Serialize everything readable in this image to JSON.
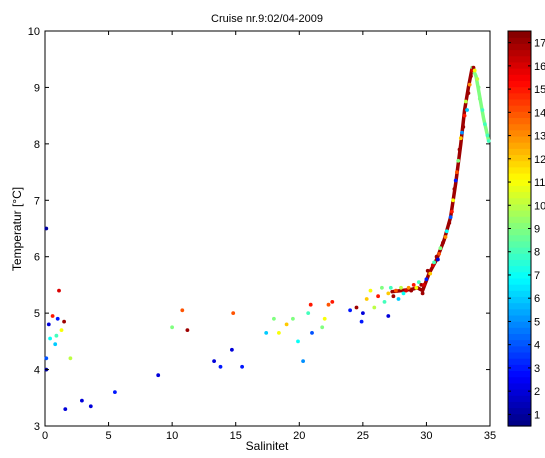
{
  "chart_data": {
    "type": "scatter",
    "title": "Cruise nr.9:02/04-2009",
    "xlabel": "Salinitet",
    "ylabel": "Temperatur [°C]",
    "xlim": [
      0,
      35
    ],
    "ylim": [
      3,
      10
    ],
    "xticks": [
      "0",
      "5",
      "10",
      "15",
      "20",
      "25",
      "30",
      "35"
    ],
    "yticks": [
      "3",
      "4",
      "5",
      "6",
      "7",
      "8",
      "9",
      "10"
    ],
    "grid": false,
    "legend": "none",
    "colorbar": {
      "placement": "right",
      "colormap": "jet",
      "range": [
        0.5,
        17.5
      ],
      "ticks": [
        "1",
        "2",
        "3",
        "4",
        "5",
        "6",
        "7",
        "8",
        "9",
        "10",
        "11",
        "12",
        "13",
        "14",
        "15",
        "16",
        "17"
      ]
    },
    "points": [
      {
        "x": 0.1,
        "y": 6.5,
        "c": 1
      },
      {
        "x": 0.1,
        "y": 4.0,
        "c": 1
      },
      {
        "x": 0.1,
        "y": 4.2,
        "c": 4
      },
      {
        "x": 0.3,
        "y": 4.8,
        "c": 2
      },
      {
        "x": 0.4,
        "y": 4.55,
        "c": 7
      },
      {
        "x": 0.6,
        "y": 4.95,
        "c": 15
      },
      {
        "x": 0.8,
        "y": 4.45,
        "c": 6
      },
      {
        "x": 0.9,
        "y": 4.6,
        "c": 8
      },
      {
        "x": 1.0,
        "y": 4.9,
        "c": 3
      },
      {
        "x": 1.1,
        "y": 5.4,
        "c": 16
      },
      {
        "x": 1.3,
        "y": 4.7,
        "c": 11
      },
      {
        "x": 1.5,
        "y": 4.85,
        "c": 17
      },
      {
        "x": 1.6,
        "y": 3.3,
        "c": 2
      },
      {
        "x": 2.0,
        "y": 4.2,
        "c": 10
      },
      {
        "x": 2.9,
        "y": 3.45,
        "c": 2
      },
      {
        "x": 3.6,
        "y": 3.35,
        "c": 2
      },
      {
        "x": 5.5,
        "y": 3.6,
        "c": 3
      },
      {
        "x": 8.9,
        "y": 3.9,
        "c": 2
      },
      {
        "x": 10.0,
        "y": 4.75,
        "c": 9
      },
      {
        "x": 10.8,
        "y": 5.05,
        "c": 14
      },
      {
        "x": 11.2,
        "y": 4.7,
        "c": 17
      },
      {
        "x": 13.3,
        "y": 4.15,
        "c": 2
      },
      {
        "x": 13.8,
        "y": 4.05,
        "c": 3
      },
      {
        "x": 14.7,
        "y": 4.35,
        "c": 2
      },
      {
        "x": 14.8,
        "y": 5.0,
        "c": 14
      },
      {
        "x": 15.5,
        "y": 4.05,
        "c": 3
      },
      {
        "x": 17.4,
        "y": 4.65,
        "c": 6
      },
      {
        "x": 18.0,
        "y": 4.9,
        "c": 9
      },
      {
        "x": 18.4,
        "y": 4.65,
        "c": 11
      },
      {
        "x": 19.0,
        "y": 4.8,
        "c": 12
      },
      {
        "x": 19.5,
        "y": 4.9,
        "c": 9
      },
      {
        "x": 19.9,
        "y": 4.5,
        "c": 7
      },
      {
        "x": 20.3,
        "y": 4.15,
        "c": 5
      },
      {
        "x": 20.7,
        "y": 5.0,
        "c": 8
      },
      {
        "x": 20.9,
        "y": 5.15,
        "c": 15
      },
      {
        "x": 21.0,
        "y": 4.65,
        "c": 4
      },
      {
        "x": 21.8,
        "y": 4.75,
        "c": 9
      },
      {
        "x": 22.0,
        "y": 4.9,
        "c": 11
      },
      {
        "x": 22.3,
        "y": 5.15,
        "c": 14
      },
      {
        "x": 22.6,
        "y": 5.2,
        "c": 15
      },
      {
        "x": 24.0,
        "y": 5.05,
        "c": 3
      },
      {
        "x": 24.5,
        "y": 5.1,
        "c": 17
      },
      {
        "x": 24.9,
        "y": 4.85,
        "c": 3
      },
      {
        "x": 25.0,
        "y": 5.0,
        "c": 2
      },
      {
        "x": 25.3,
        "y": 5.25,
        "c": 12
      },
      {
        "x": 25.6,
        "y": 5.4,
        "c": 11
      },
      {
        "x": 25.9,
        "y": 5.1,
        "c": 10
      },
      {
        "x": 26.2,
        "y": 5.3,
        "c": 15
      },
      {
        "x": 26.5,
        "y": 5.45,
        "c": 9
      },
      {
        "x": 26.7,
        "y": 5.2,
        "c": 8
      },
      {
        "x": 27.0,
        "y": 5.35,
        "c": 12
      },
      {
        "x": 27.0,
        "y": 4.95,
        "c": 2
      },
      {
        "x": 27.2,
        "y": 5.45,
        "c": 8
      },
      {
        "x": 27.4,
        "y": 5.3,
        "c": 17
      },
      {
        "x": 27.6,
        "y": 5.4,
        "c": 14
      },
      {
        "x": 27.8,
        "y": 5.25,
        "c": 6
      },
      {
        "x": 28.0,
        "y": 5.45,
        "c": 10
      },
      {
        "x": 28.2,
        "y": 5.35,
        "c": 7
      },
      {
        "x": 28.4,
        "y": 5.4,
        "c": 16
      },
      {
        "x": 28.6,
        "y": 5.45,
        "c": 13
      },
      {
        "x": 28.8,
        "y": 5.4,
        "c": 17
      },
      {
        "x": 29.0,
        "y": 5.5,
        "c": 15
      },
      {
        "x": 29.2,
        "y": 5.45,
        "c": 11
      },
      {
        "x": 29.4,
        "y": 5.55,
        "c": 8
      },
      {
        "x": 29.6,
        "y": 5.5,
        "c": 17
      },
      {
        "x": 29.7,
        "y": 5.35,
        "c": 17
      },
      {
        "x": 29.8,
        "y": 5.5,
        "c": 16
      },
      {
        "x": 30.0,
        "y": 5.6,
        "c": 3
      },
      {
        "x": 30.1,
        "y": 5.75,
        "c": 17
      },
      {
        "x": 30.3,
        "y": 5.7,
        "c": 12
      },
      {
        "x": 30.5,
        "y": 5.85,
        "c": 16
      },
      {
        "x": 30.6,
        "y": 5.9,
        "c": 8
      },
      {
        "x": 30.8,
        "y": 6.0,
        "c": 17
      },
      {
        "x": 31.0,
        "y": 6.05,
        "c": 14
      },
      {
        "x": 31.1,
        "y": 6.15,
        "c": 9
      },
      {
        "x": 31.3,
        "y": 6.25,
        "c": 17
      },
      {
        "x": 31.5,
        "y": 6.35,
        "c": 13
      },
      {
        "x": 31.6,
        "y": 6.45,
        "c": 7
      },
      {
        "x": 31.8,
        "y": 6.6,
        "c": 17
      },
      {
        "x": 32.0,
        "y": 6.8,
        "c": 15
      },
      {
        "x": 32.1,
        "y": 7.0,
        "c": 11
      },
      {
        "x": 32.2,
        "y": 7.2,
        "c": 17
      },
      {
        "x": 32.4,
        "y": 7.5,
        "c": 14
      },
      {
        "x": 32.5,
        "y": 7.7,
        "c": 9
      },
      {
        "x": 32.6,
        "y": 7.9,
        "c": 17
      },
      {
        "x": 32.7,
        "y": 8.1,
        "c": 12
      },
      {
        "x": 32.9,
        "y": 8.3,
        "c": 17
      },
      {
        "x": 33.0,
        "y": 8.5,
        "c": 15
      },
      {
        "x": 33.1,
        "y": 8.75,
        "c": 10
      },
      {
        "x": 33.3,
        "y": 8.9,
        "c": 17
      },
      {
        "x": 33.4,
        "y": 9.05,
        "c": 13
      },
      {
        "x": 33.5,
        "y": 9.2,
        "c": 17
      },
      {
        "x": 33.6,
        "y": 9.3,
        "c": 16
      },
      {
        "x": 33.7,
        "y": 9.35,
        "c": 17
      },
      {
        "x": 33.8,
        "y": 9.3,
        "c": 11
      },
      {
        "x": 34.0,
        "y": 9.15,
        "c": 10
      },
      {
        "x": 34.1,
        "y": 9.0,
        "c": 9
      },
      {
        "x": 34.2,
        "y": 8.8,
        "c": 9
      },
      {
        "x": 34.4,
        "y": 8.6,
        "c": 8
      },
      {
        "x": 34.6,
        "y": 8.35,
        "c": 8
      },
      {
        "x": 34.8,
        "y": 8.15,
        "c": 8
      },
      {
        "x": 34.9,
        "y": 8.05,
        "c": 8
      },
      {
        "x": 32.8,
        "y": 8.2,
        "c": 5
      },
      {
        "x": 33.2,
        "y": 8.6,
        "c": 6
      },
      {
        "x": 31.9,
        "y": 6.7,
        "c": 4
      },
      {
        "x": 30.9,
        "y": 5.95,
        "c": 2
      },
      {
        "x": 32.3,
        "y": 7.35,
        "c": 3
      }
    ],
    "tracks": [
      {
        "c": 17,
        "points": [
          [
            27.3,
            5.38
          ],
          [
            28.0,
            5.4
          ],
          [
            28.8,
            5.42
          ],
          [
            29.3,
            5.45
          ],
          [
            29.7,
            5.4
          ],
          [
            30.2,
            5.7
          ],
          [
            30.8,
            5.95
          ],
          [
            31.4,
            6.3
          ],
          [
            31.9,
            6.7
          ],
          [
            32.3,
            7.3
          ],
          [
            32.7,
            8.0
          ],
          [
            33.0,
            8.6
          ],
          [
            33.3,
            9.0
          ],
          [
            33.6,
            9.35
          ],
          [
            33.8,
            9.3
          ]
        ]
      },
      {
        "c": 9,
        "points": [
          [
            33.6,
            9.35
          ],
          [
            33.9,
            9.2
          ],
          [
            34.1,
            8.95
          ],
          [
            34.3,
            8.7
          ],
          [
            34.5,
            8.45
          ],
          [
            34.7,
            8.25
          ],
          [
            34.9,
            8.05
          ]
        ]
      }
    ]
  }
}
